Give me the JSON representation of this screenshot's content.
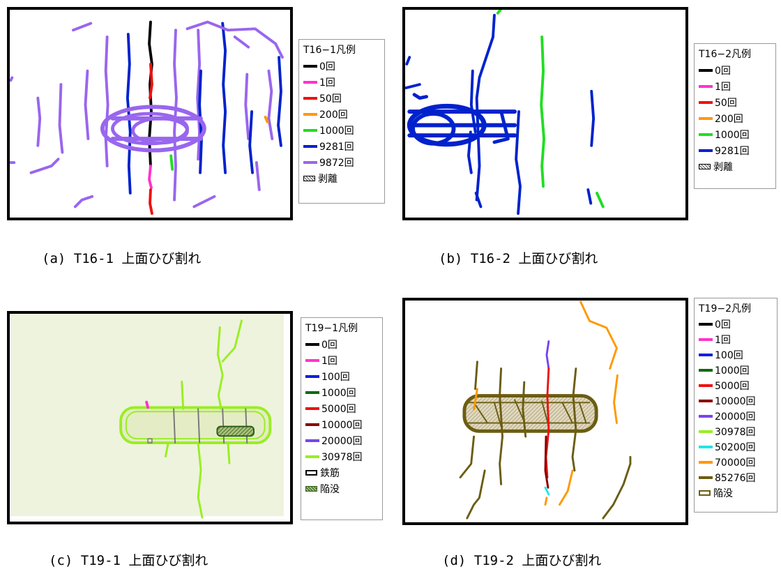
{
  "panels": [
    {
      "legend_title": "T16−1凡例",
      "legend": [
        {
          "label": "0回",
          "color": "#000000",
          "kind": "line"
        },
        {
          "label": "1回",
          "color": "#ff33cc",
          "kind": "line"
        },
        {
          "label": "50回",
          "color": "#ee1111",
          "kind": "line"
        },
        {
          "label": "200回",
          "color": "#ff9900",
          "kind": "line"
        },
        {
          "label": "1000回",
          "color": "#22dd22",
          "kind": "line"
        },
        {
          "label": "9281回",
          "color": "#0022cc",
          "kind": "line"
        },
        {
          "label": "9872回",
          "color": "#9966ee",
          "kind": "line"
        },
        {
          "label": "剥離",
          "color": "#555555",
          "kind": "hatch"
        }
      ],
      "caption": "(a)  T16-1 上面ひび割れ"
    },
    {
      "legend_title": "T16−2凡例",
      "legend": [
        {
          "label": "0回",
          "color": "#000000",
          "kind": "line"
        },
        {
          "label": "1回",
          "color": "#ff33cc",
          "kind": "line"
        },
        {
          "label": "50回",
          "color": "#ee1111",
          "kind": "line"
        },
        {
          "label": "200回",
          "color": "#ff9900",
          "kind": "line"
        },
        {
          "label": "1000回",
          "color": "#22dd22",
          "kind": "line"
        },
        {
          "label": "9281回",
          "color": "#0022cc",
          "kind": "line"
        },
        {
          "label": "剥離",
          "color": "#555555",
          "kind": "hatch"
        }
      ],
      "caption": "(b)  T16-2 上面ひび割れ"
    },
    {
      "legend_title": "T19−1凡例",
      "legend": [
        {
          "label": "0回",
          "color": "#000000",
          "kind": "line"
        },
        {
          "label": "1回",
          "color": "#ff33cc",
          "kind": "line"
        },
        {
          "label": "100回",
          "color": "#0022dd",
          "kind": "line"
        },
        {
          "label": "1000回",
          "color": "#0b6b0b",
          "kind": "line"
        },
        {
          "label": "5000回",
          "color": "#ee1111",
          "kind": "line"
        },
        {
          "label": "10000回",
          "color": "#8b0000",
          "kind": "line"
        },
        {
          "label": "20000回",
          "color": "#7744ee",
          "kind": "line"
        },
        {
          "label": "30978回",
          "color": "#99ee22",
          "kind": "line"
        },
        {
          "label": "鉄筋",
          "color": "#000000",
          "kind": "box"
        },
        {
          "label": "陥没",
          "color": "#2e5a1a",
          "kind": "hatch-green"
        }
      ],
      "caption": "(c)  T19-1 上面ひび割れ"
    },
    {
      "legend_title": "T19−2凡例",
      "legend": [
        {
          "label": "0回",
          "color": "#000000",
          "kind": "line"
        },
        {
          "label": "1回",
          "color": "#ff33cc",
          "kind": "line"
        },
        {
          "label": "100回",
          "color": "#0022dd",
          "kind": "line"
        },
        {
          "label": "1000回",
          "color": "#0b6b0b",
          "kind": "line"
        },
        {
          "label": "5000回",
          "color": "#ee1111",
          "kind": "line"
        },
        {
          "label": "10000回",
          "color": "#8b0000",
          "kind": "line"
        },
        {
          "label": "20000回",
          "color": "#7744ee",
          "kind": "line"
        },
        {
          "label": "30978回",
          "color": "#99ee22",
          "kind": "line"
        },
        {
          "label": "50200回",
          "color": "#22e6e6",
          "kind": "line"
        },
        {
          "label": "70000回",
          "color": "#ff9900",
          "kind": "line"
        },
        {
          "label": "85276回",
          "color": "#6b5d12",
          "kind": "line"
        },
        {
          "label": "陥没",
          "color": "#6b5d12",
          "kind": "box-olive"
        }
      ],
      "caption": "(d)  T19-2 上面ひび割れ"
    }
  ]
}
